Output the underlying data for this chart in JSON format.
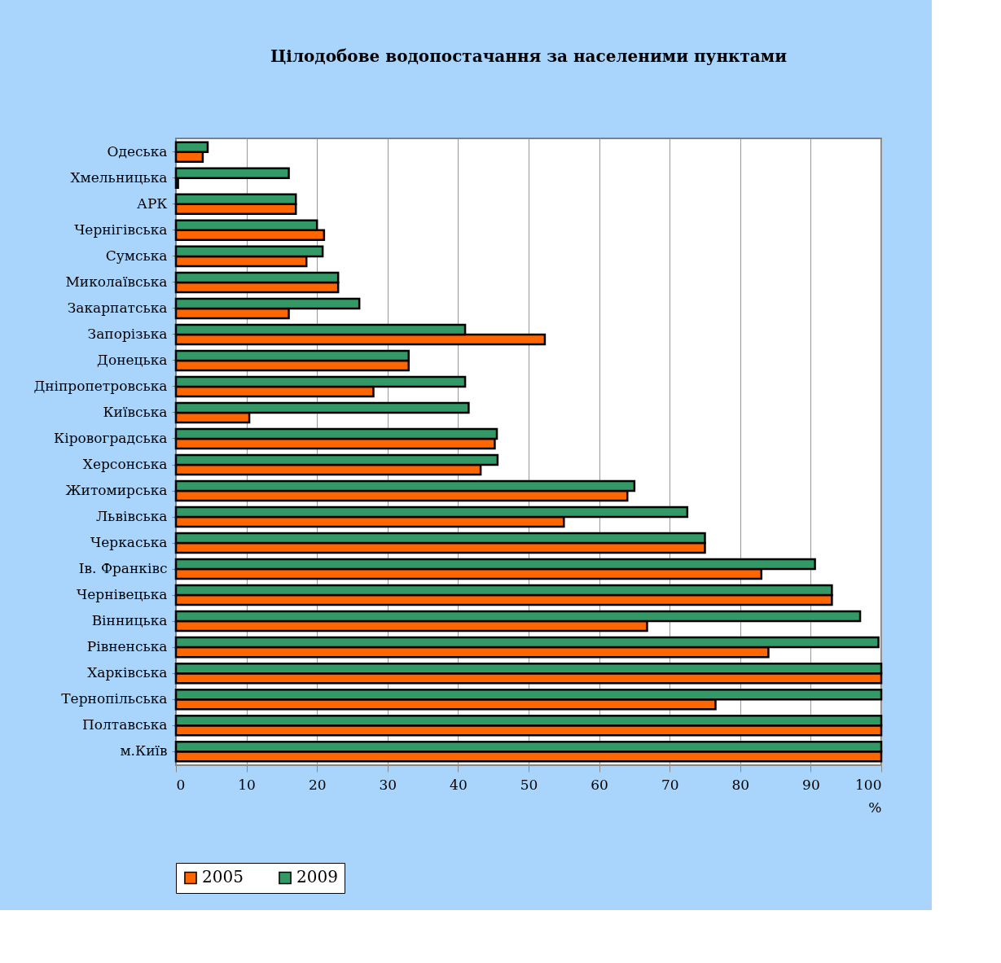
{
  "chart_data": {
    "type": "bar",
    "orientation": "horizontal",
    "title": "Цілодобове водопостачання за населеними пунктами",
    "xlabel": "%",
    "categories": [
      "Одеська",
      "Хмельницька",
      "АРК",
      "Чернігівська",
      "Сумська",
      "Миколаївська",
      "Закарпатська",
      "Запорізька",
      "Донецька",
      "Дніпропетровська",
      "Київська",
      "Кіровоградська",
      "Херсонська",
      "Житомирська",
      "Львівська",
      "Черкаська",
      "Ів. Франківс",
      "Чернівецька",
      "Вінницька",
      "Рівненська",
      "Харківська",
      "Тернопільська",
      "Полтавська",
      "м.Київ"
    ],
    "series": [
      {
        "name": "2005",
        "color": "#ff6600",
        "values": [
          3.8,
          0.3,
          17,
          21,
          18.5,
          23,
          16,
          52.3,
          33,
          28,
          10.4,
          45.2,
          43.2,
          64,
          55,
          75,
          83,
          93,
          66.8,
          84,
          100,
          76.5,
          100,
          100
        ]
      },
      {
        "name": "2009",
        "color": "#339966",
        "values": [
          4.5,
          16,
          17,
          20,
          20.8,
          23,
          26,
          41,
          33,
          41,
          41.5,
          45.5,
          45.6,
          65,
          72.5,
          75,
          90.6,
          93,
          97,
          99.6,
          100,
          100,
          100,
          100
        ]
      }
    ],
    "xlim": [
      0,
      100
    ],
    "xticks": [
      0,
      10,
      20,
      30,
      40,
      50,
      60,
      70,
      80,
      90,
      100
    ],
    "grid": "x",
    "legend": "bottom"
  }
}
